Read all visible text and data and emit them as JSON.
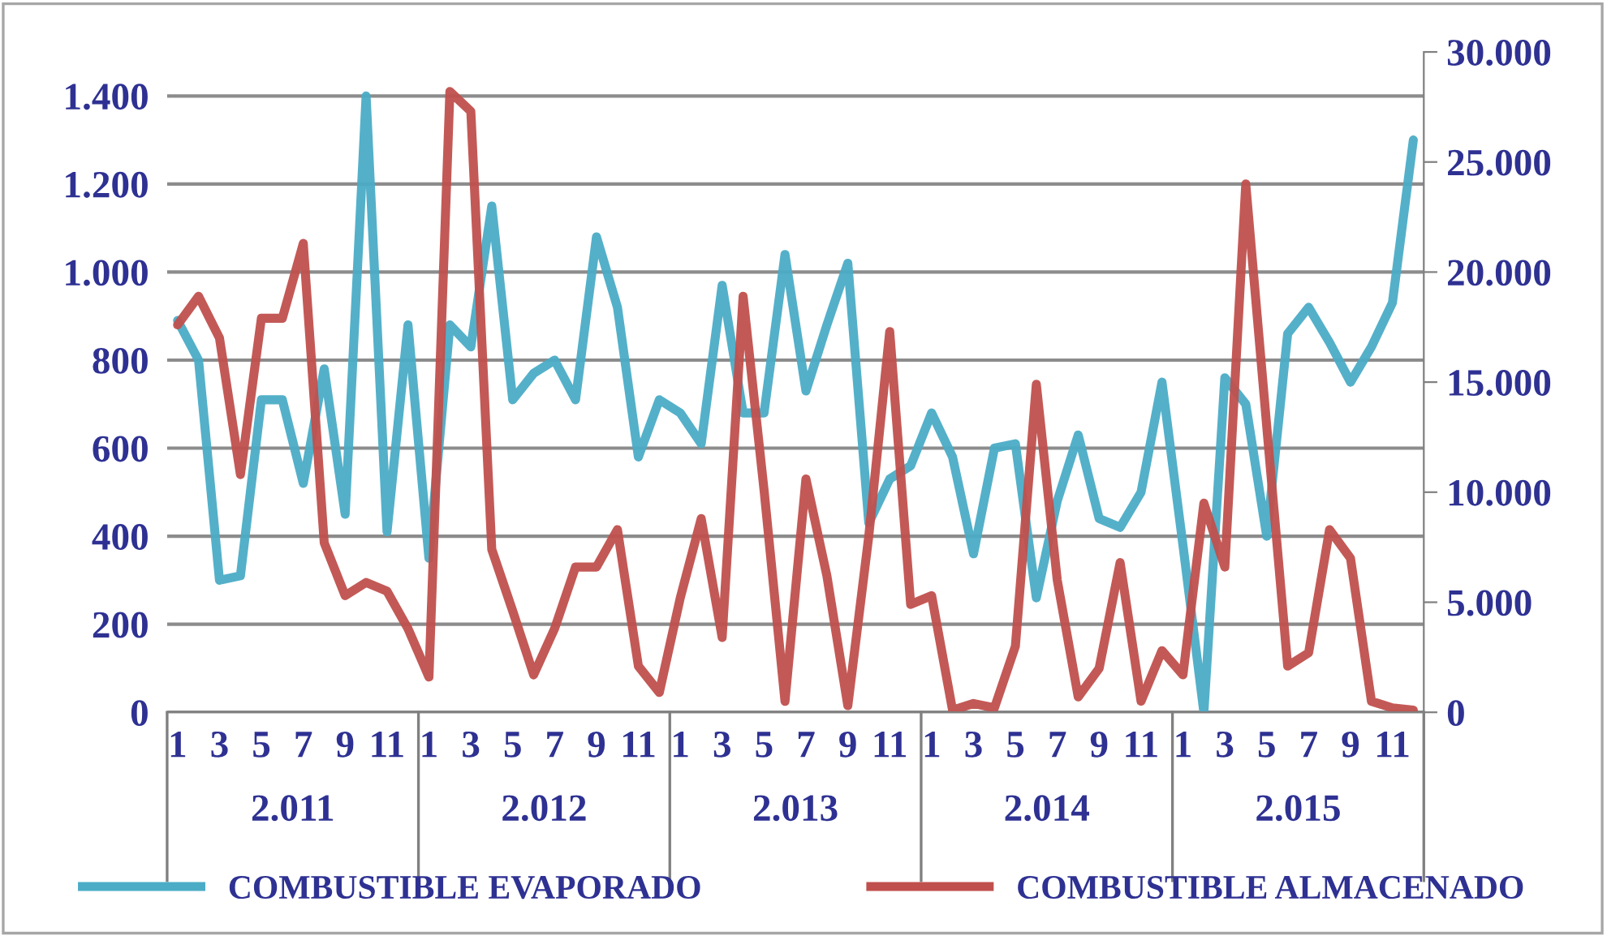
{
  "chart_data": {
    "type": "line",
    "categories": [
      "1",
      null,
      "3",
      null,
      "5",
      null,
      "7",
      null,
      "9",
      null,
      "11",
      null,
      "1",
      null,
      "3",
      null,
      "5",
      null,
      "7",
      null,
      "9",
      null,
      "11",
      null,
      "1",
      null,
      "3",
      null,
      "5",
      null,
      "7",
      null,
      "9",
      null,
      "11",
      null,
      "1",
      null,
      "3",
      null,
      "5",
      null,
      "7",
      null,
      "9",
      null,
      "11",
      null,
      "1",
      null,
      "3",
      null,
      "5",
      null,
      "7",
      null,
      "9",
      null,
      "11",
      null
    ],
    "annotations": [
      "2.011",
      "2.012",
      "2.013",
      "2.014",
      "2.015"
    ],
    "series": [
      {
        "name": "COMBUSTIBLE EVAPORADO",
        "color": "#4bacc6",
        "values": [
          890,
          800,
          300,
          310,
          710,
          710,
          520,
          780,
          450,
          1400,
          410,
          880,
          350,
          880,
          830,
          1150,
          710,
          770,
          800,
          710,
          1080,
          920,
          580,
          710,
          680,
          610,
          970,
          680,
          680,
          1040,
          730,
          880,
          1020,
          430,
          530,
          560,
          680,
          580,
          360,
          600,
          610,
          260,
          480,
          630,
          440,
          420,
          500,
          750,
          380,
          0,
          760,
          700,
          400,
          860,
          920,
          840,
          750,
          830,
          930,
          1300
        ]
      },
      {
        "name": "COMBUSTIBLE ALMACENADO",
        "color": "#c0504d",
        "axis": "y2",
        "values": [
          17600,
          18900,
          17000,
          10800,
          17900,
          17900,
          21300,
          7700,
          5300,
          5900,
          5500,
          3800,
          1600,
          28200,
          27300,
          7400,
          4600,
          1700,
          3800,
          6600,
          6600,
          8300,
          2100,
          900,
          5200,
          8800,
          3400,
          18900,
          10100,
          500,
          10600,
          6200,
          300,
          8000,
          17300,
          4900,
          5300,
          100,
          400,
          200,
          3000,
          14900,
          6000,
          700,
          2000,
          6800,
          500,
          2800,
          1700,
          9500,
          6600,
          24000,
          13000,
          2100,
          2700,
          8300,
          7000,
          500,
          200,
          100
        ]
      }
    ],
    "ylim": [
      0,
      1500
    ],
    "yticks": [
      0,
      200,
      400,
      600,
      800,
      {
        "value": 1000,
        "label": "1.000"
      },
      {
        "value": 1200,
        "label": "1.200"
      },
      {
        "value": 1400,
        "label": "1.400"
      }
    ],
    "y2lim": [
      0,
      30000
    ],
    "y2ticks": [
      0,
      {
        "value": 5000,
        "label": "5.000"
      },
      {
        "value": 10000,
        "label": "10.000"
      },
      {
        "value": 15000,
        "label": "15.000"
      },
      {
        "value": 20000,
        "label": "20.000"
      },
      {
        "value": 25000,
        "label": "25.000"
      },
      {
        "value": 30000,
        "label": "30.000"
      }
    ],
    "grid": "y",
    "legend": "bottom",
    "marker": "none",
    "line_style": "solid"
  }
}
